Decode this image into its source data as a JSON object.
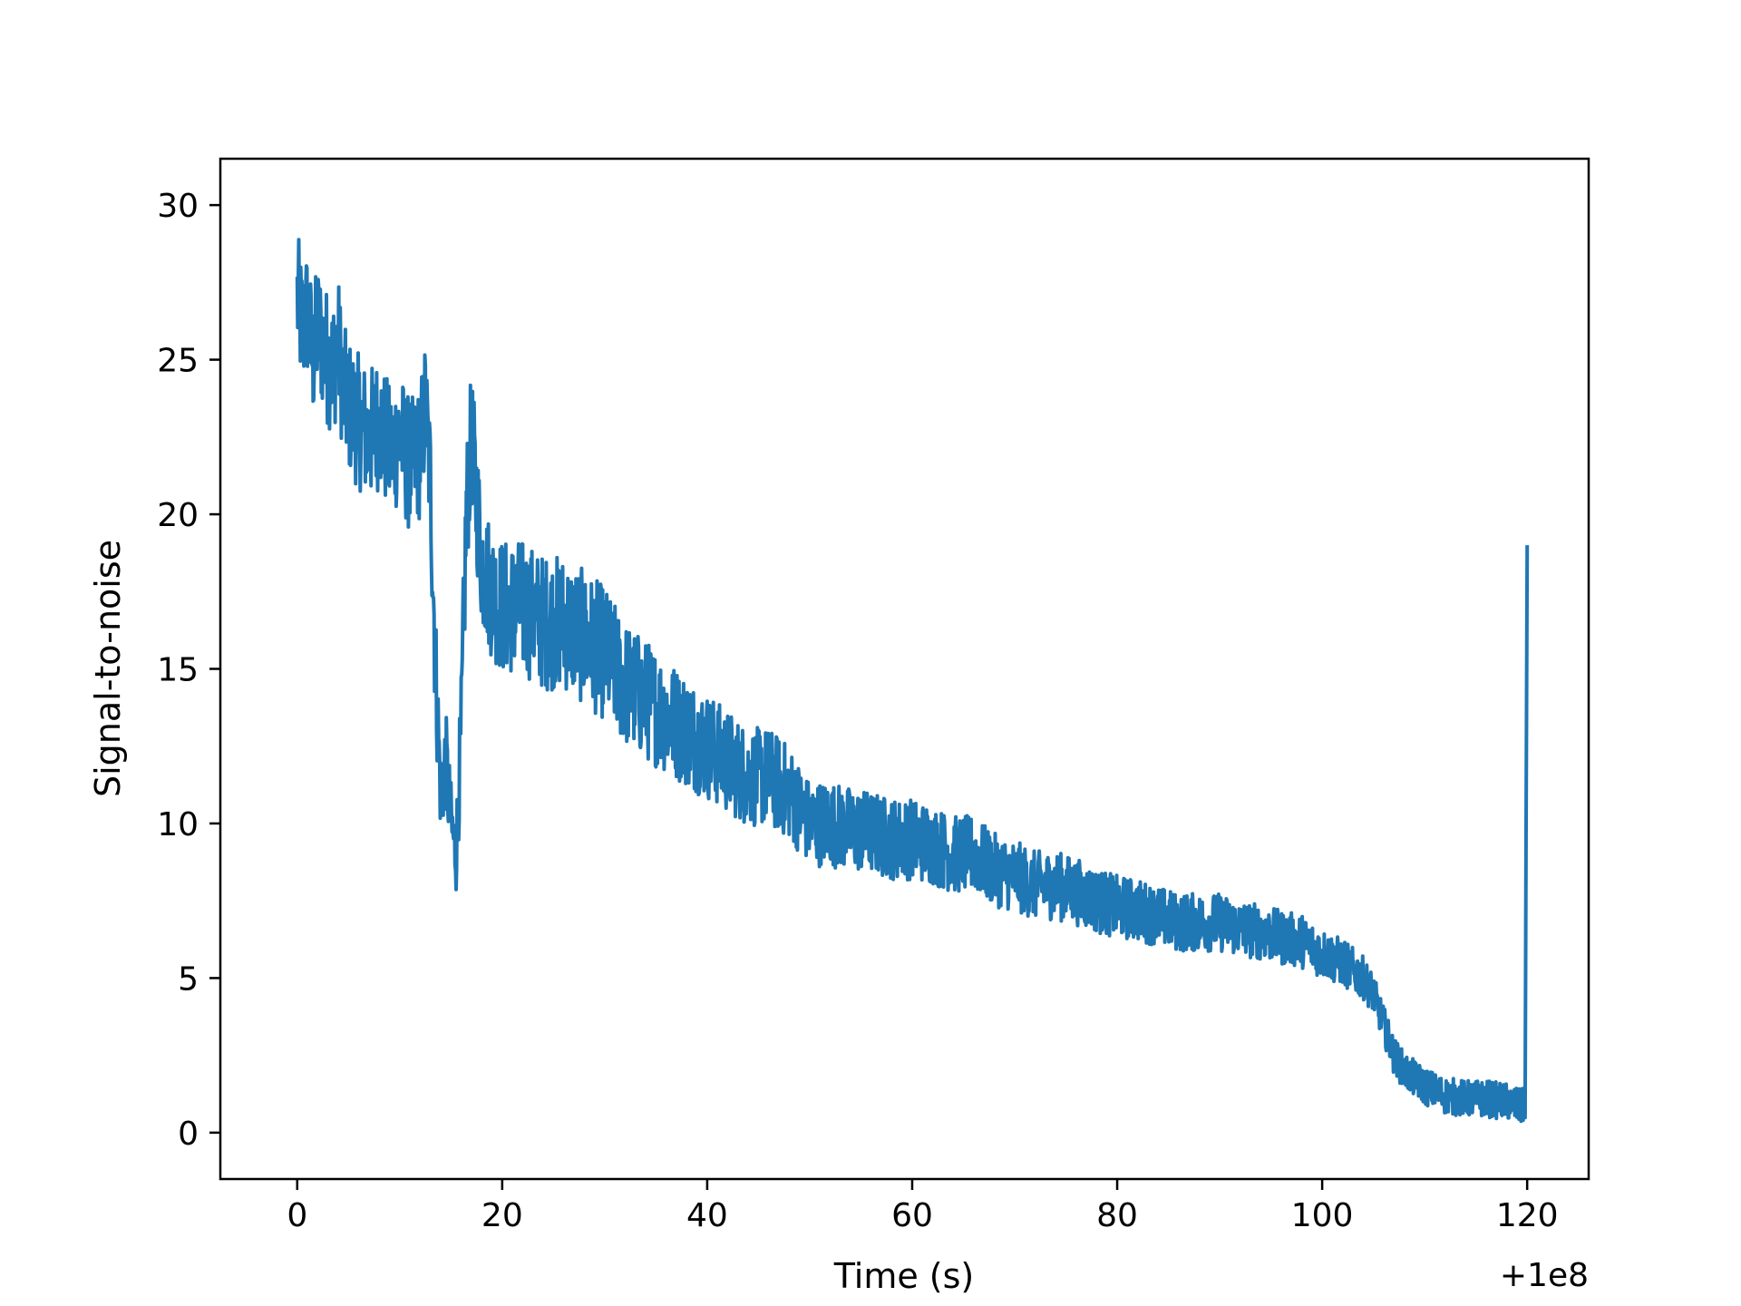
{
  "chart_data": {
    "type": "line",
    "title": "",
    "xlabel": "Time (s)",
    "ylabel": "Signal-to-noise",
    "x_offset_label": "+1e8",
    "xlim": [
      -7.5,
      126
    ],
    "ylim": [
      -1.5,
      31.5
    ],
    "x_ticks": [
      0,
      20,
      40,
      60,
      80,
      100,
      120
    ],
    "y_ticks": [
      0,
      5,
      10,
      15,
      20,
      25,
      30
    ],
    "grid": false,
    "legend": "none",
    "series": [
      {
        "color": "#1f77b4",
        "x": [
          0,
          0.5,
          1,
          1.5,
          2,
          2.5,
          3,
          3.5,
          4,
          4.5,
          5,
          6,
          7,
          8,
          9,
          10,
          11,
          12,
          12.5,
          13,
          13.5,
          14,
          14.5,
          15,
          15.5,
          16,
          16.5,
          17,
          18,
          19,
          20,
          22,
          24,
          26,
          28,
          30,
          32,
          34,
          36,
          38,
          40,
          42,
          44,
          46,
          48,
          50,
          52,
          54,
          56,
          58,
          60,
          62,
          64,
          66,
          68,
          70,
          72,
          74,
          76,
          78,
          80,
          82,
          84,
          86,
          88,
          90,
          92,
          94,
          96,
          98,
          100,
          102,
          104,
          105,
          106,
          107,
          108,
          110,
          112,
          114,
          116,
          118,
          119.5,
          119.8,
          120
        ],
        "y": [
          27,
          26,
          26.5,
          25,
          26,
          25.5,
          25,
          24.8,
          25.5,
          24,
          23.5,
          23,
          22.5,
          23,
          22,
          22.5,
          21.5,
          22,
          23.5,
          21,
          15,
          11,
          12,
          10,
          9,
          13,
          20,
          22.5,
          18.5,
          17.5,
          17,
          17,
          16.5,
          16.5,
          16,
          15.5,
          14.5,
          14,
          13.5,
          13,
          12.5,
          12,
          11.5,
          11.5,
          11,
          10,
          10,
          9.8,
          9.7,
          9.5,
          9.5,
          9.3,
          9,
          9,
          8.5,
          8.3,
          8,
          8,
          7.8,
          7.5,
          7.3,
          7.2,
          7,
          6.8,
          6.8,
          6.8,
          6.6,
          6.5,
          6.3,
          6.2,
          5.8,
          5.5,
          5,
          4.5,
          3.5,
          2.5,
          2,
          1.5,
          1.2,
          1.1,
          1.1,
          1.0,
          0.8,
          1.0,
          19
        ]
      }
    ]
  }
}
